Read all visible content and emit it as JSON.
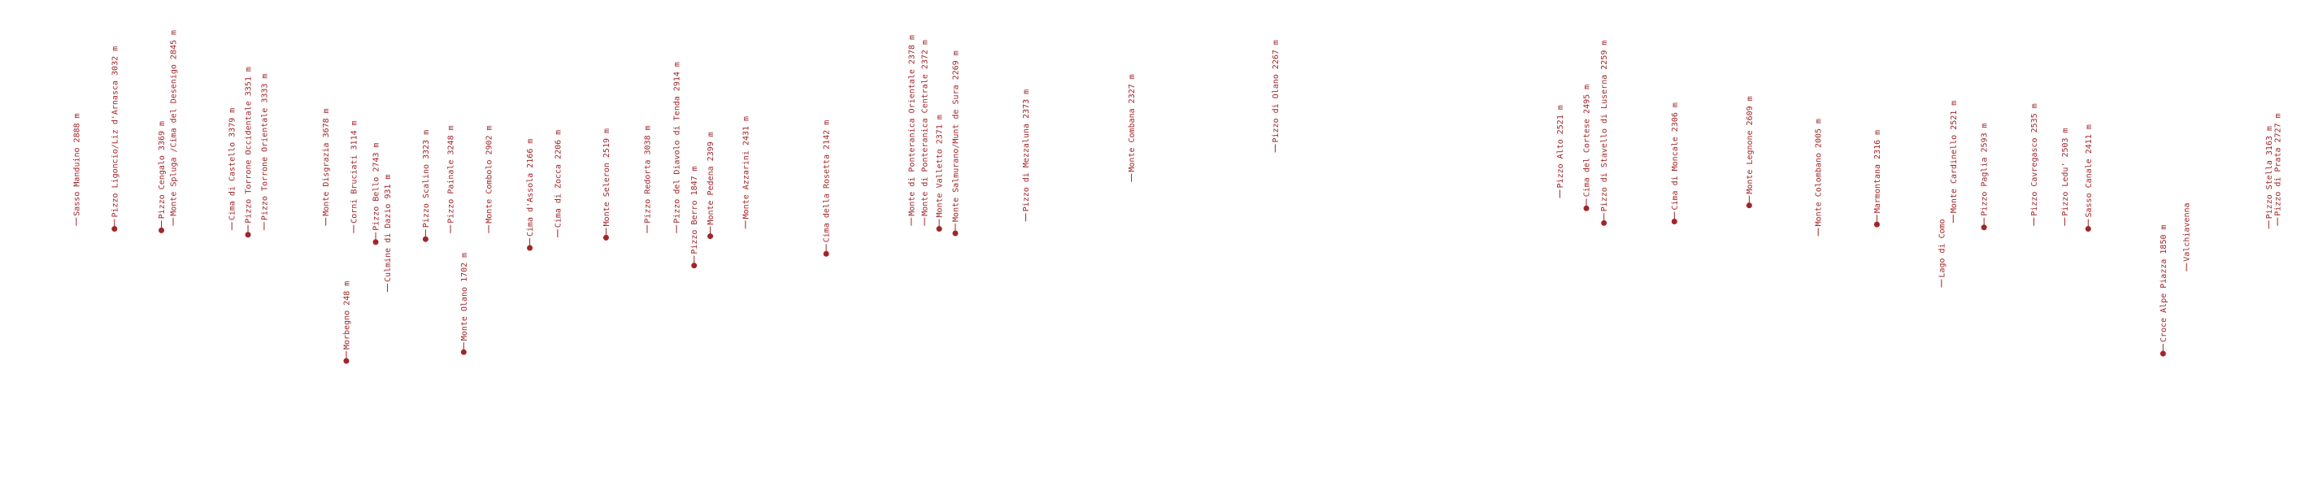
{
  "labels": [
    "Sasso Manduino 2888 m",
    "Pizzo Ligoncio/Liz d'Arnasca 3032 m",
    "Pizzo Cengalo 3369 m",
    "Monte Spluga /Cima del Desenigo 2845 m",
    "Cima di Castello 3379 m",
    "Pizzo Torrone Occidentale 3351 m",
    "Pizzo Torrone Orientale 3333 m",
    "Monte Disgrazia 3678 m",
    "Corni Bruciati 3114 m",
    "Pizzo Bello 2743 m",
    "Culmine di Dazio 931 m",
    "Morbegno 248 m",
    "Pizzo Scalino 3323 m",
    "Pizzo Painale 3248 m",
    "Monte Olano 1702 m",
    "Monte Combolo 2902 m",
    "Cima d'Assola 2166 m",
    "Cima di Zocca 2206 m",
    "Monte Seleron 2519 m",
    "Pizzo Redorta 3038 m",
    "Pizzo del Diavolo di Tenda 2914 m",
    "Pizzo Berro 1847 m",
    "Monte Pedena 2399 m",
    "Monte Azzarini 2431 m",
    "Cima della Rosetta 2142 m",
    "Monte di Ponteranica Orientale 2378 m",
    "Monte di Ponteranica Centrale 2372 m",
    "Monte Valletto 2371 m",
    "Monte Salmurano/Munt de Sura 2269 m",
    "Pizzo di Mezzaluna 2373 m",
    "Monte Combana 2327 m",
    "Pizzo di Olano 2267 m",
    "Pizzo Alto 2521 m",
    "Cima del Cortese 2495 m",
    "Pizzo di Stavello di Luserna 2259 m",
    "Cima di Moncale 2306 m",
    "Monte Legnone 2609 m",
    "Monte Colombano 2005 m",
    "Marmontana 2316 m",
    "Lago di Como",
    "Monte Cardinello 2521 m",
    "Pizzo Paglia 2593 m",
    "Pizzo Cavregasco 2535 m",
    "Pizzo Ledu' 2503 m",
    "Sasso Canale 2411 m",
    "Croce Alpe Piazza 1850 m",
    "Valchiavenna",
    "Pizzo Stella 3163 m",
    "Pizzo di Prata 2727 m"
  ]
}
